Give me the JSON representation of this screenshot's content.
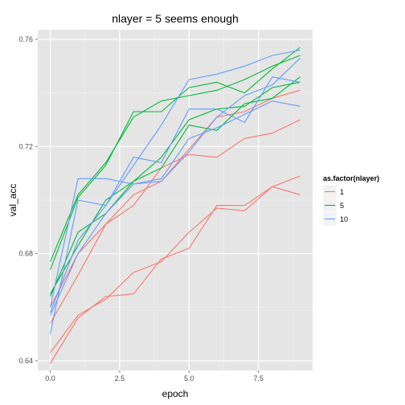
{
  "chart_data": {
    "type": "line",
    "title": "nlayer = 5 seems enough",
    "xlabel": "epoch",
    "ylabel": "val_acc",
    "xlim": [
      -0.45,
      9.45
    ],
    "ylim": [
      0.6364,
      0.7636
    ],
    "x_ticks": [
      0.0,
      2.5,
      5.0,
      7.5
    ],
    "x_tick_labels": [
      "0.0",
      "2.5",
      "5.0",
      "7.5"
    ],
    "y_ticks": [
      0.64,
      0.68,
      0.72,
      0.76
    ],
    "y_tick_labels": [
      "0.64",
      "0.68",
      "0.72",
      "0.76"
    ],
    "grid": true,
    "legend": {
      "title": "as.factor(nlayer)",
      "placement": "right",
      "entries": [
        {
          "label": "1",
          "color": "#F8766D"
        },
        {
          "label": "5",
          "color": "#00BA38"
        },
        {
          "label": "10",
          "color": "#619CFF"
        }
      ]
    },
    "x": [
      0,
      1,
      2,
      3,
      4,
      5,
      6,
      7,
      8,
      9
    ],
    "series": [
      {
        "name": "1",
        "color": "#F8766D",
        "values": [
          0.639,
          0.656,
          0.664,
          0.665,
          0.678,
          0.682,
          0.698,
          0.698,
          0.705,
          0.702
        ]
      },
      {
        "name": "1",
        "color": "#F8766D",
        "values": [
          0.643,
          0.657,
          0.663,
          0.673,
          0.677,
          0.688,
          0.697,
          0.696,
          0.705,
          0.709
        ]
      },
      {
        "name": "1",
        "color": "#F8766D",
        "values": [
          0.654,
          0.672,
          0.691,
          0.698,
          0.712,
          0.717,
          0.716,
          0.723,
          0.725,
          0.73
        ]
      },
      {
        "name": "1",
        "color": "#F8766D",
        "values": [
          0.66,
          0.68,
          0.691,
          0.702,
          0.707,
          0.719,
          0.731,
          0.733,
          0.738,
          0.741
        ]
      },
      {
        "name": "5",
        "color": "#00BA38",
        "values": [
          0.664,
          0.688,
          0.695,
          0.707,
          0.716,
          0.73,
          0.734,
          0.735,
          0.742,
          0.744
        ]
      },
      {
        "name": "5",
        "color": "#00BA38",
        "values": [
          0.665,
          0.683,
          0.7,
          0.707,
          0.712,
          0.728,
          0.726,
          0.736,
          0.738,
          0.746
        ]
      },
      {
        "name": "5",
        "color": "#00BA38",
        "values": [
          0.674,
          0.701,
          0.713,
          0.733,
          0.733,
          0.742,
          0.744,
          0.74,
          0.749,
          0.757
        ]
      },
      {
        "name": "5",
        "color": "#00BA38",
        "values": [
          0.677,
          0.702,
          0.714,
          0.731,
          0.737,
          0.739,
          0.741,
          0.745,
          0.75,
          0.754
        ]
      },
      {
        "name": "10",
        "color": "#619CFF",
        "values": [
          0.65,
          0.7,
          0.698,
          0.716,
          0.714,
          0.734,
          0.734,
          0.729,
          0.746,
          0.744
        ]
      },
      {
        "name": "10",
        "color": "#619CFF",
        "values": [
          0.657,
          0.68,
          0.695,
          0.706,
          0.707,
          0.718,
          0.731,
          0.739,
          0.743,
          0.753
        ]
      },
      {
        "name": "10",
        "color": "#619CFF",
        "values": [
          0.66,
          0.708,
          0.708,
          0.706,
          0.708,
          0.723,
          0.727,
          0.732,
          0.737,
          0.735
        ]
      },
      {
        "name": "10",
        "color": "#619CFF",
        "values": [
          0.658,
          0.685,
          0.698,
          0.713,
          0.728,
          0.745,
          0.747,
          0.75,
          0.754,
          0.756
        ]
      }
    ]
  }
}
